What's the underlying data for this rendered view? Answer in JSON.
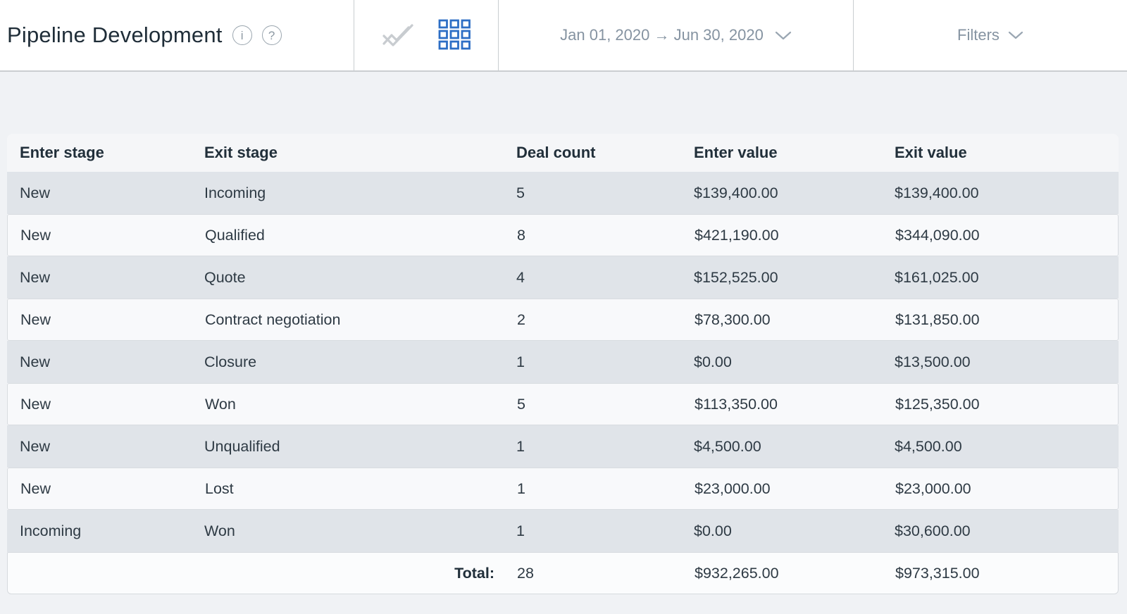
{
  "header": {
    "title": "Pipeline Development",
    "info_glyph": "i",
    "help_glyph": "?",
    "date_range": "Jan 01, 2020 → Jun 30, 2020",
    "filters_label": "Filters"
  },
  "view_toggles": [
    {
      "name": "chart-view",
      "icon": "line-chart-icon",
      "active": false
    },
    {
      "name": "table-view",
      "icon": "grid-icon",
      "active": true
    }
  ],
  "colors": {
    "accent_blue": "#2d6ec5",
    "inactive_icon_gray": "#c8ccd0",
    "muted_text": "#8593a1",
    "dark_text": "#2e3a44",
    "row_dark_bg": "#e0e4e9",
    "row_light_bg": "#f8f9fb"
  },
  "table": {
    "columns": [
      "Enter stage",
      "Exit stage",
      "Deal count",
      "Enter value",
      "Exit value"
    ],
    "rows": [
      {
        "enter_stage": "New",
        "exit_stage": "Incoming",
        "deal_count": "5",
        "enter_value": "$139,400.00",
        "exit_value": "$139,400.00"
      },
      {
        "enter_stage": "New",
        "exit_stage": "Qualified",
        "deal_count": "8",
        "enter_value": "$421,190.00",
        "exit_value": "$344,090.00"
      },
      {
        "enter_stage": "New",
        "exit_stage": "Quote",
        "deal_count": "4",
        "enter_value": "$152,525.00",
        "exit_value": "$161,025.00"
      },
      {
        "enter_stage": "New",
        "exit_stage": "Contract negotiation",
        "deal_count": "2",
        "enter_value": "$78,300.00",
        "exit_value": "$131,850.00"
      },
      {
        "enter_stage": "New",
        "exit_stage": "Closure",
        "deal_count": "1",
        "enter_value": "$0.00",
        "exit_value": "$13,500.00"
      },
      {
        "enter_stage": "New",
        "exit_stage": "Won",
        "deal_count": "5",
        "enter_value": "$113,350.00",
        "exit_value": "$125,350.00"
      },
      {
        "enter_stage": "New",
        "exit_stage": "Unqualified",
        "deal_count": "1",
        "enter_value": "$4,500.00",
        "exit_value": "$4,500.00"
      },
      {
        "enter_stage": "New",
        "exit_stage": "Lost",
        "deal_count": "1",
        "enter_value": "$23,000.00",
        "exit_value": "$23,000.00"
      },
      {
        "enter_stage": "Incoming",
        "exit_stage": "Won",
        "deal_count": "1",
        "enter_value": "$0.00",
        "exit_value": "$30,600.00"
      }
    ],
    "total": {
      "label": "Total:",
      "deal_count": "28",
      "enter_value": "$932,265.00",
      "exit_value": "$973,315.00"
    }
  }
}
